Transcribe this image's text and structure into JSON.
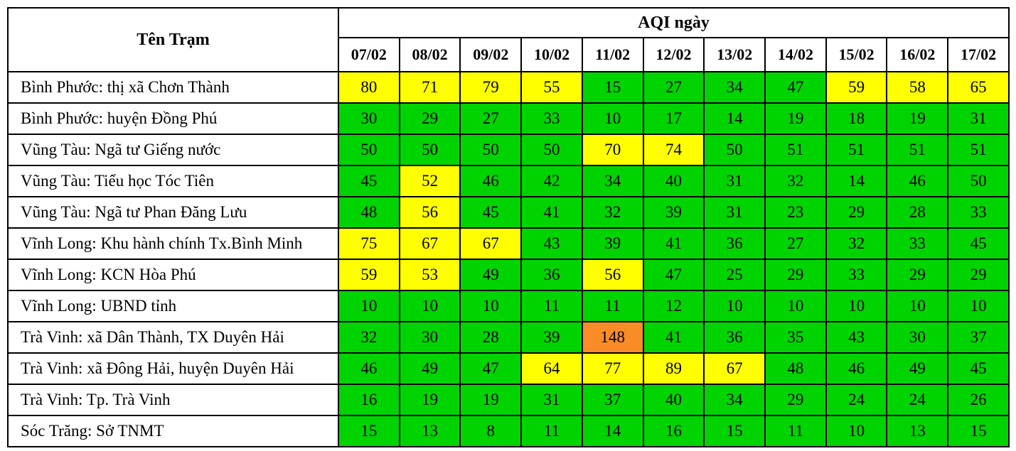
{
  "palette": {
    "green": "#00d400",
    "yellow": "#ffff00",
    "orange": "#fa8c28",
    "border": "#000000",
    "header_bg": "#ffffff"
  },
  "chart_data": {
    "type": "table",
    "title": "AQI ngày",
    "row_header_label": "Tên Trạm",
    "columns": [
      "07/02",
      "08/02",
      "09/02",
      "10/02",
      "11/02",
      "12/02",
      "13/02",
      "14/02",
      "15/02",
      "16/02",
      "17/02"
    ],
    "series": [
      {
        "name": "Bình Phước: thị xã Chơn Thành",
        "values": [
          80,
          71,
          79,
          55,
          15,
          27,
          34,
          47,
          59,
          58,
          65
        ],
        "cell_colors": [
          "yellow",
          "yellow",
          "yellow",
          "yellow",
          "green",
          "green",
          "green",
          "green",
          "yellow",
          "yellow",
          "yellow"
        ]
      },
      {
        "name": "Bình Phước: huyện Đồng Phú",
        "values": [
          30,
          29,
          27,
          33,
          10,
          17,
          14,
          19,
          18,
          19,
          31
        ],
        "cell_colors": [
          "green",
          "green",
          "green",
          "green",
          "green",
          "green",
          "green",
          "green",
          "green",
          "green",
          "green"
        ]
      },
      {
        "name": "Vũng Tàu: Ngã tư Giếng nước",
        "values": [
          50,
          50,
          50,
          50,
          70,
          74,
          50,
          51,
          51,
          51,
          51
        ],
        "cell_colors": [
          "green",
          "green",
          "green",
          "green",
          "yellow",
          "yellow",
          "green",
          "green",
          "green",
          "green",
          "green"
        ]
      },
      {
        "name": "Vũng Tàu: Tiểu học Tóc Tiên",
        "values": [
          45,
          52,
          46,
          42,
          34,
          40,
          31,
          32,
          14,
          46,
          50
        ],
        "cell_colors": [
          "green",
          "yellow",
          "green",
          "green",
          "green",
          "green",
          "green",
          "green",
          "green",
          "green",
          "green"
        ]
      },
      {
        "name": "Vũng Tàu: Ngã tư Phan Đăng Lưu",
        "values": [
          48,
          56,
          45,
          41,
          32,
          39,
          31,
          23,
          29,
          28,
          33
        ],
        "cell_colors": [
          "green",
          "yellow",
          "green",
          "green",
          "green",
          "green",
          "green",
          "green",
          "green",
          "green",
          "green"
        ]
      },
      {
        "name": "Vĩnh Long: Khu hành chính Tx.Bình Minh",
        "values": [
          75,
          67,
          67,
          43,
          39,
          41,
          36,
          27,
          32,
          33,
          45
        ],
        "cell_colors": [
          "yellow",
          "yellow",
          "yellow",
          "green",
          "green",
          "green",
          "green",
          "green",
          "green",
          "green",
          "green"
        ]
      },
      {
        "name": "Vĩnh Long: KCN Hòa Phú",
        "values": [
          59,
          53,
          49,
          36,
          56,
          47,
          25,
          29,
          33,
          29,
          29
        ],
        "cell_colors": [
          "yellow",
          "yellow",
          "green",
          "green",
          "yellow",
          "green",
          "green",
          "green",
          "green",
          "green",
          "green"
        ]
      },
      {
        "name": "Vĩnh Long: UBND tỉnh",
        "values": [
          10,
          10,
          10,
          11,
          11,
          12,
          10,
          10,
          10,
          10,
          10
        ],
        "cell_colors": [
          "green",
          "green",
          "green",
          "green",
          "green",
          "green",
          "green",
          "green",
          "green",
          "green",
          "green"
        ]
      },
      {
        "name": "Trà Vinh: xã Dân Thành, TX Duyên Hải",
        "values": [
          32,
          30,
          28,
          39,
          148,
          41,
          36,
          35,
          43,
          30,
          37
        ],
        "cell_colors": [
          "green",
          "green",
          "green",
          "green",
          "orange",
          "green",
          "green",
          "green",
          "green",
          "green",
          "green"
        ]
      },
      {
        "name": "Trà Vinh: xã Đông Hải, huyện Duyên Hải",
        "values": [
          46,
          49,
          47,
          64,
          77,
          89,
          67,
          48,
          46,
          49,
          45
        ],
        "cell_colors": [
          "green",
          "green",
          "green",
          "yellow",
          "yellow",
          "yellow",
          "yellow",
          "green",
          "green",
          "green",
          "green"
        ]
      },
      {
        "name": "Trà Vinh: Tp. Trà Vinh",
        "values": [
          16,
          19,
          19,
          31,
          37,
          40,
          34,
          29,
          24,
          24,
          26
        ],
        "cell_colors": [
          "green",
          "green",
          "green",
          "green",
          "green",
          "green",
          "green",
          "green",
          "green",
          "green",
          "green"
        ]
      },
      {
        "name": "Sóc Trăng: Sở TNMT",
        "values": [
          15,
          13,
          8,
          11,
          14,
          16,
          15,
          11,
          10,
          13,
          15
        ],
        "cell_colors": [
          "green",
          "green",
          "green",
          "green",
          "green",
          "green",
          "green",
          "green",
          "green",
          "green",
          "green"
        ]
      }
    ]
  }
}
